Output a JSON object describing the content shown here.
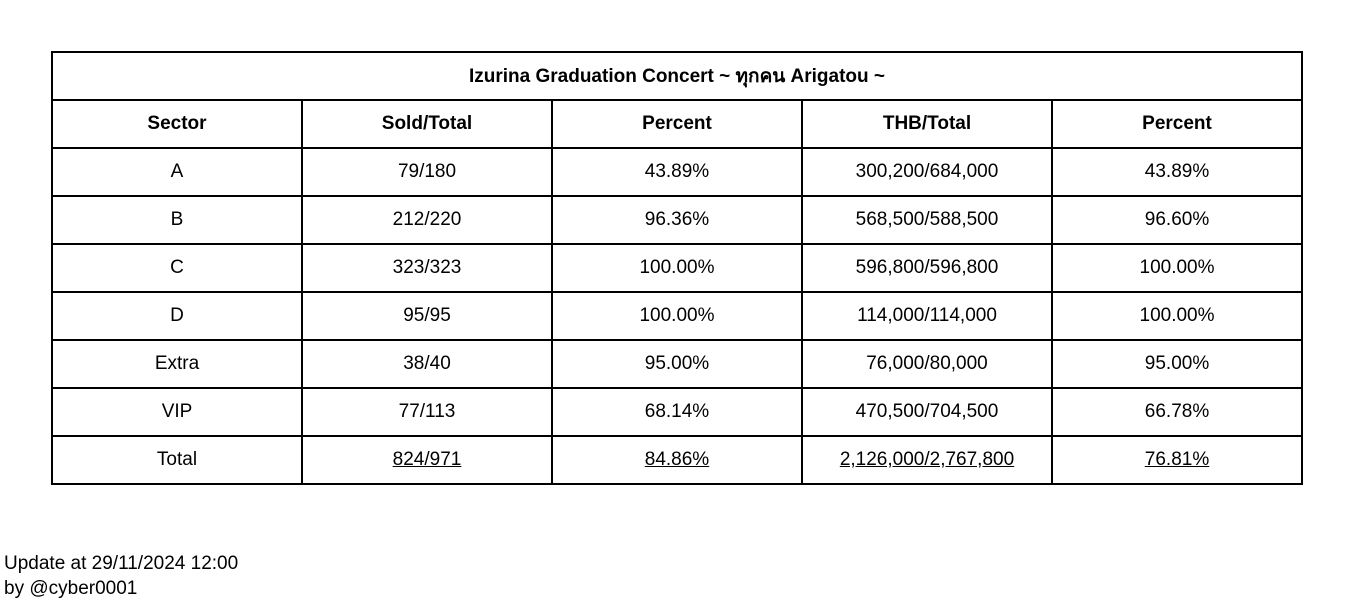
{
  "table": {
    "title": "Izurina Graduation Concert ~ ทุกคน Arigatou ~",
    "headers": [
      "Sector",
      "Sold/Total",
      "Percent",
      "THB/Total",
      "Percent"
    ],
    "rows": [
      [
        "A",
        "79/180",
        "43.89%",
        "300,200/684,000",
        "43.89%"
      ],
      [
        "B",
        "212/220",
        "96.36%",
        "568,500/588,500",
        "96.60%"
      ],
      [
        "C",
        "323/323",
        "100.00%",
        "596,800/596,800",
        "100.00%"
      ],
      [
        "D",
        "95/95",
        "100.00%",
        "114,000/114,000",
        "100.00%"
      ],
      [
        "Extra",
        "38/40",
        "95.00%",
        "76,000/80,000",
        "95.00%"
      ],
      [
        "VIP",
        "77/113",
        "68.14%",
        "470,500/704,500",
        "66.78%"
      ],
      [
        "Total",
        "824/971",
        "84.86%",
        "2,126,000/2,767,800",
        "76.81%"
      ]
    ]
  },
  "footer": {
    "update_line": "Update at 29/11/2024 12:00",
    "author_line": "by @cyber0001"
  }
}
